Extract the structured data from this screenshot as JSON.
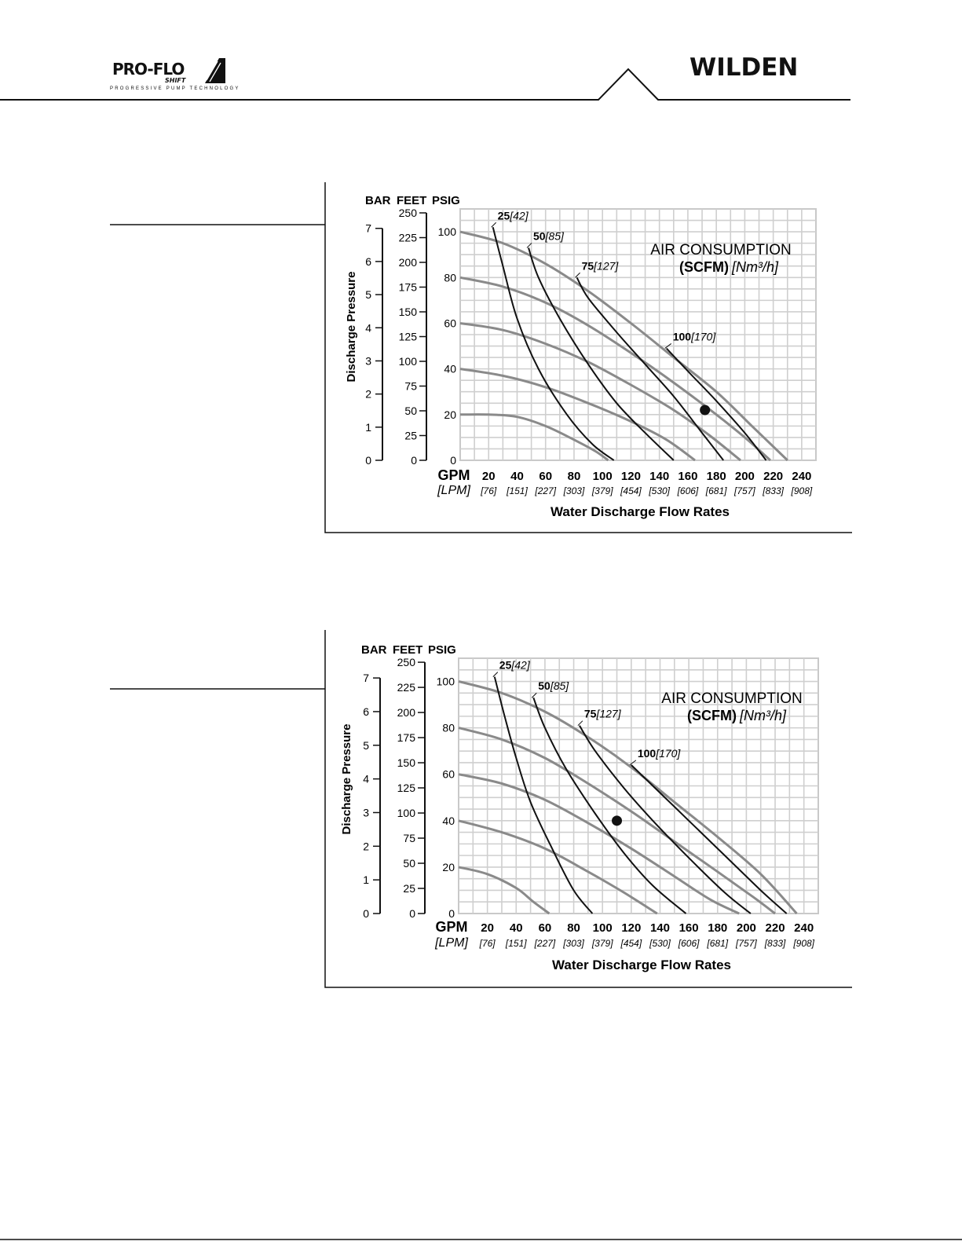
{
  "header": {
    "left_logo": {
      "brand": "PRO-FLO",
      "sub": "SHIFT",
      "tagline": "PROGRESSIVE PUMP TECHNOLOGY"
    },
    "right_logo": {
      "brand": "WILDEN"
    }
  },
  "chart_data": [
    {
      "type": "line",
      "title": "AIR CONSUMPTION",
      "subtitle_bold": "(SCFM)",
      "subtitle_italic": "[Nm³/h]",
      "xlabel": "Water Discharge Flow Rates",
      "ylabel": "Discharge Pressure",
      "x_unit_primary": "GPM",
      "x_unit_secondary": "[LPM]",
      "xlim": [
        0,
        250
      ],
      "ylim": [
        0,
        110
      ],
      "x_ticks": [
        {
          "gpm": "20",
          "lpm": "[76]"
        },
        {
          "gpm": "40",
          "lpm": "[151]"
        },
        {
          "gpm": "60",
          "lpm": "[227]"
        },
        {
          "gpm": "80",
          "lpm": "[303]"
        },
        {
          "gpm": "100",
          "lpm": "[379]"
        },
        {
          "gpm": "120",
          "lpm": "[454]"
        },
        {
          "gpm": "140",
          "lpm": "[530]"
        },
        {
          "gpm": "160",
          "lpm": "[606]"
        },
        {
          "gpm": "180",
          "lpm": "[681]"
        },
        {
          "gpm": "200",
          "lpm": "[757]"
        },
        {
          "gpm": "220",
          "lpm": "[833]"
        },
        {
          "gpm": "240",
          "lpm": "[908]"
        }
      ],
      "y_axes": {
        "bar": {
          "title": "BAR",
          "ticks": [
            "0",
            "1",
            "2",
            "3",
            "4",
            "5",
            "6",
            "7"
          ]
        },
        "feet": {
          "title": "FEET",
          "ticks": [
            "0",
            "25",
            "50",
            "75",
            "100",
            "125",
            "150",
            "175",
            "200",
            "225",
            "250"
          ]
        },
        "psig": {
          "title": "PSIG",
          "ticks": [
            "0",
            "20",
            "40",
            "60",
            "80",
            "100"
          ]
        }
      },
      "pressure_curves": [
        {
          "supply_psig": 100,
          "points": [
            [
              0,
              100
            ],
            [
              30,
              95
            ],
            [
              60,
              86
            ],
            [
              90,
              74
            ],
            [
              120,
              60
            ],
            [
              150,
              45
            ],
            [
              180,
              30
            ],
            [
              205,
              15
            ],
            [
              230,
              0
            ]
          ]
        },
        {
          "supply_psig": 80,
          "points": [
            [
              0,
              80
            ],
            [
              30,
              76
            ],
            [
              60,
              69
            ],
            [
              90,
              59
            ],
            [
              120,
              47
            ],
            [
              150,
              34
            ],
            [
              180,
              20
            ],
            [
              200,
              10
            ],
            [
              218,
              0
            ]
          ]
        },
        {
          "supply_psig": 60,
          "points": [
            [
              0,
              60
            ],
            [
              30,
              57
            ],
            [
              60,
              51
            ],
            [
              90,
              43
            ],
            [
              120,
              33
            ],
            [
              150,
              22
            ],
            [
              175,
              11
            ],
            [
              197,
              0
            ]
          ]
        },
        {
          "supply_psig": 40,
          "points": [
            [
              0,
              40
            ],
            [
              30,
              37
            ],
            [
              60,
              32
            ],
            [
              90,
              25
            ],
            [
              120,
              17
            ],
            [
              145,
              9
            ],
            [
              165,
              0
            ]
          ]
        },
        {
          "supply_psig": 20,
          "points": [
            [
              0,
              20
            ],
            [
              20,
              20
            ],
            [
              40,
              19
            ],
            [
              60,
              15
            ],
            [
              80,
              9
            ],
            [
              95,
              4
            ],
            [
              104,
              0
            ]
          ]
        }
      ],
      "air_curves": [
        {
          "scfm": "25",
          "nm3h": "[42]",
          "points": [
            [
              23,
              102
            ],
            [
              30,
              85
            ],
            [
              40,
              62
            ],
            [
              55,
              40
            ],
            [
              75,
              20
            ],
            [
              93,
              7
            ],
            [
              108,
              0
            ]
          ]
        },
        {
          "scfm": "50",
          "nm3h": "[85]",
          "points": [
            [
              48,
              93
            ],
            [
              55,
              80
            ],
            [
              70,
              62
            ],
            [
              90,
              42
            ],
            [
              110,
              25
            ],
            [
              130,
              12
            ],
            [
              150,
              0
            ]
          ]
        },
        {
          "scfm": "75",
          "nm3h": "[127]",
          "points": [
            [
              82,
              80
            ],
            [
              90,
              71
            ],
            [
              110,
              56
            ],
            [
              130,
              42
            ],
            [
              150,
              28
            ],
            [
              170,
              12
            ],
            [
              185,
              0
            ]
          ]
        },
        {
          "scfm": "100",
          "nm3h": "[170]",
          "points": [
            [
              145,
              49
            ],
            [
              160,
              39
            ],
            [
              180,
              26
            ],
            [
              200,
              12
            ],
            [
              215,
              0
            ]
          ]
        }
      ],
      "operating_point": {
        "gpm": 172,
        "psig": 22
      }
    },
    {
      "type": "line",
      "title": "AIR CONSUMPTION",
      "subtitle_bold": "(SCFM)",
      "subtitle_italic": "[Nm³/h]",
      "xlabel": "Water Discharge Flow Rates",
      "ylabel": "Discharge Pressure",
      "x_unit_primary": "GPM",
      "x_unit_secondary": "[LPM]",
      "xlim": [
        0,
        250
      ],
      "ylim": [
        0,
        110
      ],
      "x_ticks": [
        {
          "gpm": "20",
          "lpm": "[76]"
        },
        {
          "gpm": "40",
          "lpm": "[151]"
        },
        {
          "gpm": "60",
          "lpm": "[227]"
        },
        {
          "gpm": "80",
          "lpm": "[303]"
        },
        {
          "gpm": "100",
          "lpm": "[379]"
        },
        {
          "gpm": "120",
          "lpm": "[454]"
        },
        {
          "gpm": "140",
          "lpm": "[530]"
        },
        {
          "gpm": "160",
          "lpm": "[606]"
        },
        {
          "gpm": "180",
          "lpm": "[681]"
        },
        {
          "gpm": "200",
          "lpm": "[757]"
        },
        {
          "gpm": "220",
          "lpm": "[833]"
        },
        {
          "gpm": "240",
          "lpm": "[908]"
        }
      ],
      "y_axes": {
        "bar": {
          "title": "BAR",
          "ticks": [
            "0",
            "1",
            "2",
            "3",
            "4",
            "5",
            "6",
            "7"
          ]
        },
        "feet": {
          "title": "FEET",
          "ticks": [
            "0",
            "25",
            "50",
            "75",
            "100",
            "125",
            "150",
            "175",
            "200",
            "225",
            "250"
          ]
        },
        "psig": {
          "title": "PSIG",
          "ticks": [
            "0",
            "20",
            "40",
            "60",
            "80",
            "100"
          ]
        }
      },
      "pressure_curves": [
        {
          "supply_psig": 100,
          "points": [
            [
              0,
              100
            ],
            [
              30,
              95
            ],
            [
              60,
              87
            ],
            [
              90,
              76
            ],
            [
              120,
              63
            ],
            [
              150,
              48
            ],
            [
              180,
              33
            ],
            [
              210,
              17
            ],
            [
              235,
              0
            ]
          ]
        },
        {
          "supply_psig": 80,
          "points": [
            [
              0,
              80
            ],
            [
              30,
              75
            ],
            [
              60,
              67
            ],
            [
              90,
              56
            ],
            [
              120,
              44
            ],
            [
              150,
              31
            ],
            [
              180,
              18
            ],
            [
              205,
              7
            ],
            [
              220,
              0
            ]
          ]
        },
        {
          "supply_psig": 60,
          "points": [
            [
              0,
              60
            ],
            [
              30,
              56
            ],
            [
              60,
              49
            ],
            [
              90,
              39
            ],
            [
              120,
              28
            ],
            [
              150,
              16
            ],
            [
              175,
              6
            ],
            [
              195,
              0
            ]
          ]
        },
        {
          "supply_psig": 40,
          "points": [
            [
              0,
              40
            ],
            [
              30,
              35
            ],
            [
              60,
              28
            ],
            [
              90,
              18
            ],
            [
              115,
              9
            ],
            [
              138,
              0
            ]
          ]
        },
        {
          "supply_psig": 20,
          "points": [
            [
              0,
              20
            ],
            [
              20,
              17
            ],
            [
              40,
              11
            ],
            [
              52,
              5
            ],
            [
              63,
              0
            ]
          ]
        }
      ],
      "air_curves": [
        {
          "scfm": "25",
          "nm3h": "[42]",
          "points": [
            [
              25,
              102
            ],
            [
              32,
              85
            ],
            [
              40,
              67
            ],
            [
              50,
              48
            ],
            [
              65,
              28
            ],
            [
              80,
              10
            ],
            [
              93,
              0
            ]
          ]
        },
        {
          "scfm": "50",
          "nm3h": "[85]",
          "points": [
            [
              52,
              93
            ],
            [
              60,
              80
            ],
            [
              75,
              62
            ],
            [
              95,
              43
            ],
            [
              115,
              26
            ],
            [
              135,
              12
            ],
            [
              158,
              0
            ]
          ]
        },
        {
          "scfm": "75",
          "nm3h": "[127]",
          "points": [
            [
              84,
              81
            ],
            [
              95,
              70
            ],
            [
              115,
              54
            ],
            [
              135,
              40
            ],
            [
              160,
              24
            ],
            [
              185,
              9
            ],
            [
              203,
              0
            ]
          ]
        },
        {
          "scfm": "100",
          "nm3h": "[170]",
          "points": [
            [
              120,
              64
            ],
            [
              135,
              55
            ],
            [
              160,
              40
            ],
            [
              185,
              25
            ],
            [
              210,
              10
            ],
            [
              228,
              0
            ]
          ]
        }
      ],
      "operating_point": {
        "gpm": 110,
        "psig": 40
      }
    }
  ]
}
